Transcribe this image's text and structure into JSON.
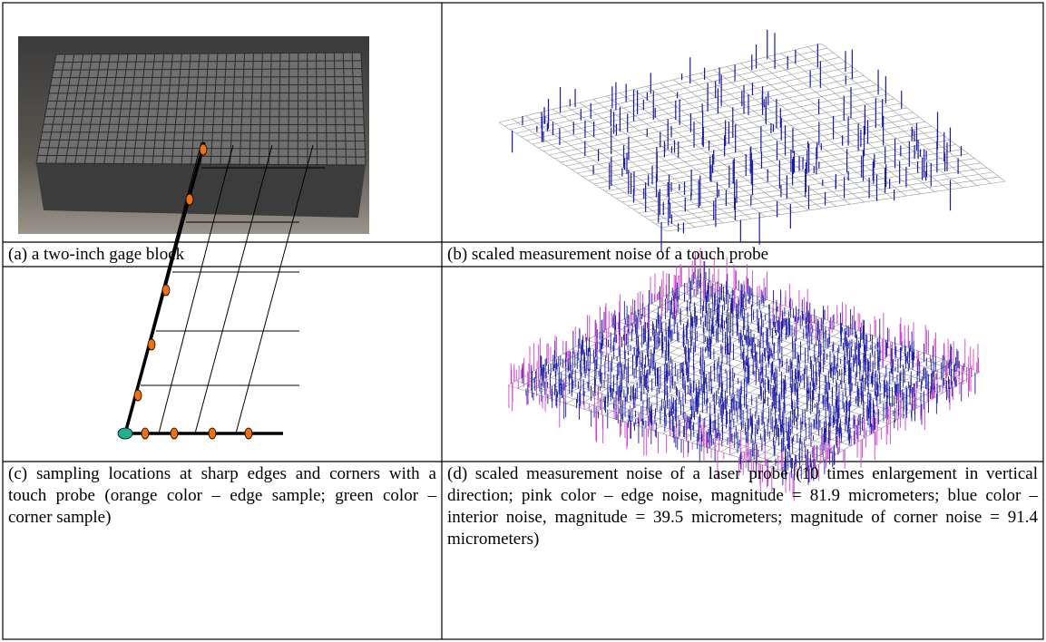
{
  "panels": [
    {
      "caption": "(a) a two-inch gage block"
    },
    {
      "caption": "(b) scaled measurement noise of a touch probe"
    },
    {
      "caption": "(c) sampling locations at sharp edges and corners with a touch probe (orange color – edge sample; green color – corner sample)"
    },
    {
      "caption": "(d) scaled measurement noise of a laser probe (10 times enlargement in vertical direction; pink color – edge noise, magnitude = 81.9 micrometers; blue color – interior noise, magnitude = 39.5 micrometers; magnitude of corner noise = 91.4 micrometers)"
    }
  ]
}
